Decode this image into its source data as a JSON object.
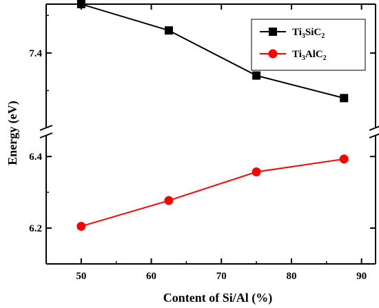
{
  "chart_data": {
    "type": "line",
    "xlabel": "Content of Si/Al (%)",
    "ylabel": "Energy (eV)",
    "x": [
      50,
      62.5,
      75,
      87.5
    ],
    "xlim": [
      45,
      92
    ],
    "xticks": [
      "50",
      "60",
      "70",
      "80",
      "90"
    ],
    "xtick_values": [
      50,
      60,
      70,
      80,
      90
    ],
    "axis_break": true,
    "upper_panel": {
      "ylim": [
        7.2,
        7.53
      ],
      "yticks": [
        "7.4"
      ],
      "ytick_values": [
        7.4
      ]
    },
    "lower_panel": {
      "ylim": [
        6.1,
        6.46
      ],
      "yticks": [
        "6.2",
        "6.4"
      ],
      "ytick_values": [
        6.2,
        6.4
      ]
    },
    "legend_position": "top-right",
    "grid": false,
    "series": [
      {
        "name": "Ti3SiC2",
        "legend_parts": [
          [
            "Ti",
            ""
          ],
          [
            "3",
            "sub"
          ],
          [
            "SiC",
            ""
          ],
          [
            "2",
            "sub"
          ]
        ],
        "values": [
          7.53,
          7.46,
          7.34,
          7.28
        ],
        "panel": "upper",
        "color": "#000000",
        "marker": "square"
      },
      {
        "name": "Ti3AlC2",
        "legend_parts": [
          [
            "Ti",
            ""
          ],
          [
            "3",
            "sub"
          ],
          [
            "AlC",
            ""
          ],
          [
            "2",
            "sub"
          ]
        ],
        "values": [
          6.205,
          6.277,
          6.357,
          6.393
        ],
        "panel": "lower",
        "color": "#ff0000",
        "marker": "circle"
      }
    ]
  }
}
